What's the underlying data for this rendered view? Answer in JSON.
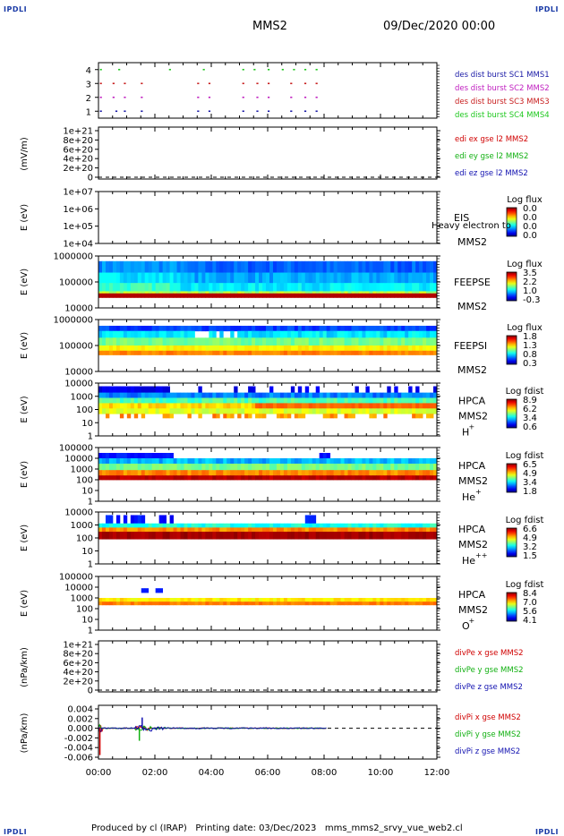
{
  "corners": {
    "tl": "IPDLI",
    "tr": "IPDLI",
    "bl": "IPDLI",
    "br": "IPDLI"
  },
  "header": {
    "spacecraft": "MMS2",
    "datetime": "09/Dec/2020 00:00"
  },
  "footer": {
    "text": "Produced by cl (IRAP)   Printing date: 03/Dec/2023   mms_mms2_srvy_vue_web2.cl"
  },
  "time_axis": {
    "ticks": [
      "00:00",
      "02:00",
      "04:00",
      "06:00",
      "08:00",
      "10:00",
      "12:00"
    ],
    "range_hours": [
      0,
      12
    ]
  },
  "colors": {
    "mms1": "#1a1aa6",
    "mms2": "#c020c0",
    "mms3": "#c81e1e",
    "mms4": "#1ec81e",
    "red": "#d00000",
    "green": "#10b010",
    "blue": "#1010b0"
  },
  "chart_data": [
    {
      "type": "scatter",
      "name": "burst",
      "yticks": [
        "1",
        "2",
        "3",
        "4"
      ],
      "ylim": [
        0.5,
        4.5
      ],
      "legend": [
        "des dist burst SC1 MMS1",
        "des dist burst SC2 MMS2",
        "des dist burst SC3 MMS3",
        "des dist burst SC4 MMS4"
      ],
      "series": [
        {
          "y": 4,
          "color": "#1ec81e",
          "times": [
            0.05,
            0.7,
            2.5,
            3.7,
            5.1,
            5.5,
            6.0,
            6.5,
            6.9,
            7.3,
            7.7
          ]
        },
        {
          "y": 3,
          "color": "#c81e1e",
          "times": [
            0.05,
            0.5,
            0.9,
            1.5,
            3.5,
            3.9,
            5.1,
            5.6,
            6.0,
            6.8,
            7.3,
            7.7
          ]
        },
        {
          "y": 2,
          "color": "#c020c0",
          "times": [
            0.05,
            0.5,
            0.9,
            1.5,
            3.5,
            3.9,
            5.1,
            5.6,
            6.0,
            6.8,
            7.3,
            7.7
          ]
        },
        {
          "y": 1,
          "color": "#1a1aa6",
          "times": [
            0.05,
            0.6,
            0.9,
            1.5,
            3.5,
            3.9,
            5.1,
            5.6,
            6.0,
            6.8,
            7.3,
            7.7
          ]
        }
      ]
    },
    {
      "type": "line",
      "name": "edi",
      "ylabel": "(mV/m)",
      "yticks": [
        "1e+21",
        "8e+20",
        "6e+20",
        "4e+20",
        "2e+20",
        "0"
      ],
      "ylim": [
        0,
        1e+21
      ],
      "legend": [
        {
          "text": "edi ex gse l2 MMS2",
          "color": "#d00000"
        },
        {
          "text": "edi ey gse l2 MMS2",
          "color": "#10b010"
        },
        {
          "text": "edi ez gse l2 MMS2",
          "color": "#1010b0"
        }
      ]
    },
    {
      "type": "heatmap",
      "name": "eis",
      "ylabel": "E (eV)",
      "yticks": [
        "1e+07",
        "1e+06",
        "1e+05",
        "1e+04"
      ],
      "label": "EIS",
      "label2": "MMS2",
      "extra": "Heavy electron to",
      "cb_title": "Log flux",
      "cb_ticks": [
        "0.0",
        "0.0",
        "0.0",
        "0.0"
      ]
    },
    {
      "type": "heatmap",
      "name": "feepse",
      "ylabel": "E (eV)",
      "yticks": [
        "1000000",
        "100000",
        "10000"
      ],
      "label": "FEEPSE",
      "label2": "MMS2",
      "cb_title": "Log flux",
      "cb_ticks": [
        "3.5",
        "2.2",
        "1.0",
        "-0.3"
      ]
    },
    {
      "type": "heatmap",
      "name": "feepsi",
      "ylabel": "E (eV)",
      "yticks": [
        "1000000",
        "100000",
        "10000"
      ],
      "label": "FEEPSI",
      "label2": "MMS2",
      "cb_title": "Log flux",
      "cb_ticks": [
        "1.8",
        "1.3",
        "0.8",
        "0.3"
      ]
    },
    {
      "type": "heatmap",
      "name": "hpca-h",
      "ylabel": "E (eV)",
      "yticks": [
        "10000",
        "1000",
        "100",
        "10",
        "1"
      ],
      "label": "HPCA",
      "label2": "MMS2",
      "species": "H",
      "charge": "+",
      "cb_title": "Log fdist",
      "cb_ticks": [
        "8.9",
        "6.2",
        "3.4",
        "0.6"
      ]
    },
    {
      "type": "heatmap",
      "name": "hpca-he",
      "ylabel": "E (eV)",
      "yticks": [
        "100000",
        "10000",
        "1000",
        "100",
        "10",
        "1"
      ],
      "label": "HPCA",
      "label2": "MMS2",
      "species": "He",
      "charge": "+",
      "cb_title": "Log fdist",
      "cb_ticks": [
        "6.5",
        "4.9",
        "3.4",
        "1.8"
      ]
    },
    {
      "type": "heatmap",
      "name": "hpca-hepp",
      "ylabel": "E (eV)",
      "yticks": [
        "10000",
        "1000",
        "100",
        "10",
        "1"
      ],
      "label": "HPCA",
      "label2": "MMS2",
      "species": "He",
      "charge": "++",
      "cb_title": "Log fdist",
      "cb_ticks": [
        "6.6",
        "4.9",
        "3.2",
        "1.5"
      ]
    },
    {
      "type": "heatmap",
      "name": "hpca-o",
      "ylabel": "E (eV)",
      "yticks": [
        "100000",
        "10000",
        "1000",
        "100",
        "10",
        "1"
      ],
      "label": "HPCA",
      "label2": "MMS2",
      "species": "O",
      "charge": "+",
      "cb_title": "Log fdist",
      "cb_ticks": [
        "8.4",
        "7.0",
        "5.6",
        "4.1"
      ]
    },
    {
      "type": "line",
      "name": "divpe",
      "ylabel": "(nPa/km)",
      "yticks": [
        "1e+21",
        "8e+20",
        "6e+20",
        "4e+20",
        "2e+20",
        "0"
      ],
      "ylim": [
        0,
        1e+21
      ],
      "legend": [
        {
          "text": "divPe x gse MMS2",
          "color": "#d00000"
        },
        {
          "text": "divPe y gse MMS2",
          "color": "#10b010"
        },
        {
          "text": "divPe z gse MMS2",
          "color": "#1010b0"
        }
      ]
    },
    {
      "type": "line",
      "name": "divpi",
      "ylabel": "(nPa/km)",
      "yticks": [
        "0.004",
        "0.002",
        "0.000",
        "-0.002",
        "-0.004",
        "-0.006"
      ],
      "ylim": [
        -0.007,
        0.005
      ],
      "legend": [
        {
          "text": "divPi x gse MMS2",
          "color": "#d00000"
        },
        {
          "text": "divPi y gse MMS2",
          "color": "#10b010"
        },
        {
          "text": "divPi z gse MMS2",
          "color": "#1010b0"
        }
      ],
      "data_end_hours": 8.1
    }
  ]
}
